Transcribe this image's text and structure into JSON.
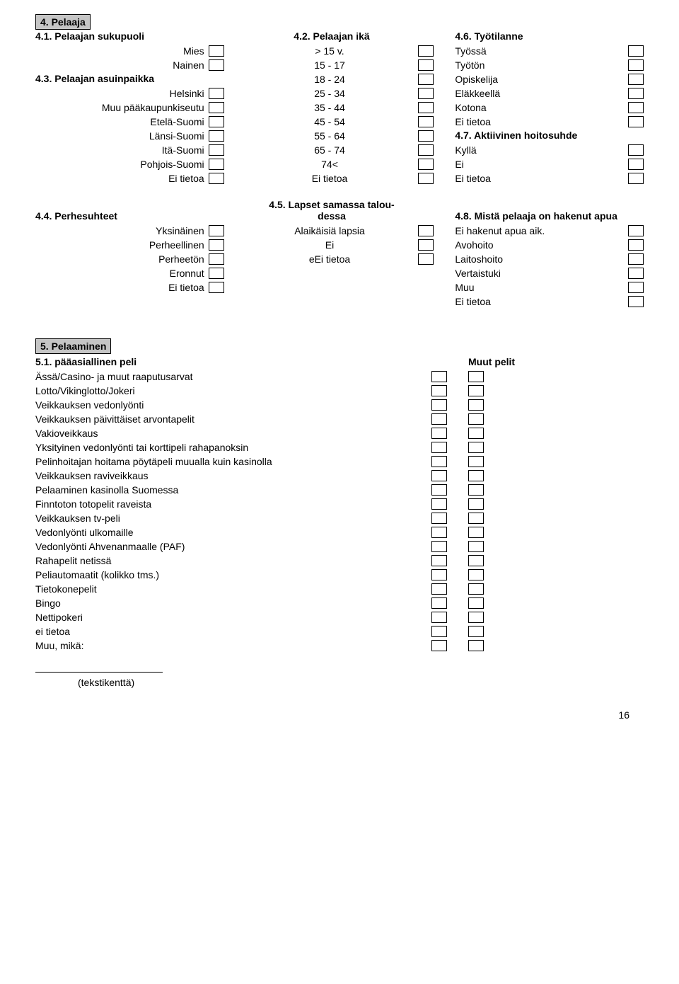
{
  "section4": {
    "title": "4. Pelaaja",
    "col1": {
      "h1": "4.1. Pelaajan sukupuoli",
      "items1": [
        "Mies",
        "Nainen"
      ],
      "h2": "4.3. Pelaajan asuinpaikka",
      "items2": [
        "Helsinki",
        "Muu pääkaupunkiseutu",
        "Etelä-Suomi",
        "Länsi-Suomi",
        "Itä-Suomi",
        "Pohjois-Suomi",
        "Ei tietoa"
      ]
    },
    "col2": {
      "h1": "4.2. Pelaajan ikä",
      "items": [
        "> 15 v.",
        "15 - 17",
        "18 - 24",
        "25 - 34",
        "35 - 44",
        "45 - 54",
        "55 - 64",
        "65 - 74",
        "74<",
        "Ei tietoa"
      ]
    },
    "col3": {
      "h1": "4.6. Työtilanne",
      "items1": [
        "Työssä",
        "Työtön",
        "Opiskelija",
        "Eläkkeellä",
        "Kotona",
        "Ei tietoa"
      ],
      "h2": "4.7. Aktiivinen hoitosuhde",
      "items2": [
        "Kyllä",
        "Ei",
        "Ei tietoa"
      ]
    }
  },
  "section4b": {
    "col1": {
      "h": "4.4. Perhesuhteet",
      "items": [
        "Yksinäinen",
        "Perheellinen",
        "Perheetön",
        "Eronnut",
        "Ei tietoa"
      ]
    },
    "col2": {
      "h": "4.5. Lapset samassa talou-\ndessa",
      "items": [
        "Alaikäisiä lapsia",
        "Ei",
        "eEi tietoa"
      ]
    },
    "col3": {
      "h": "4.8. Mistä pelaaja on hakenut apua",
      "items": [
        "Ei hakenut apua aik.",
        "Avohoito",
        "Laitoshoito",
        "Vertaistuki",
        "Muu",
        "Ei tietoa"
      ]
    }
  },
  "section5": {
    "title": "5. Pelaaminen",
    "sub": "5.1. pääasiallinen peli",
    "col2h": "Muut pelit",
    "items": [
      "Ässä/Casino- ja muut raaputusarvat",
      "Lotto/Vikinglotto/Jokeri",
      "Veikkauksen vedonlyönti",
      "Veikkauksen päivittäiset arvontapelit",
      "Vakioveikkaus",
      "Yksityinen vedonlyönti tai korttipeli rahapanoksin",
      "Pelinhoitajan hoitama pöytäpeli muualla kuin kasinolla",
      "Veikkauksen raviveikkaus",
      "Pelaaminen kasinolla Suomessa",
      "Finntoton totopelit raveista",
      "Veikkauksen tv-peli",
      "Vedonlyönti ulkomaille",
      "Vedonlyönti Ahvenanmaalle (PAF)",
      "Rahapelit netissä",
      "Peliautomaatit (kolikko tms.)",
      "Tietokonepelit",
      "Bingo",
      "Nettipokeri",
      "ei tietoa",
      "Muu, mikä:"
    ],
    "tekst": "(tekstikenttä)"
  },
  "page": "16"
}
